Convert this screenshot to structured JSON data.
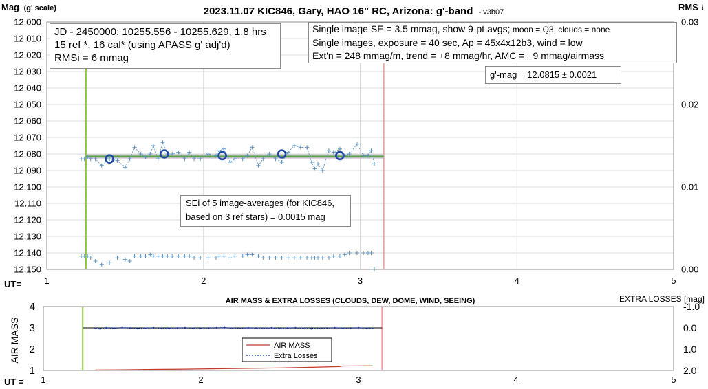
{
  "chart_data": [
    {
      "type": "scatter",
      "title": "2023.11.07 KIC846, Gary, HAO 16\" RC, Arizona: g'-band",
      "version_tag": "- v3b07",
      "ylabel_left": "Mag",
      "ylabel_left_sub": "(g' scale)",
      "ylabel_right": "RMS",
      "ylabel_right_sub": "i",
      "xlabel": "UT=",
      "xlim": [
        1,
        5
      ],
      "ylim": [
        12.0,
        12.15
      ],
      "y_inverted": true,
      "y2lim": [
        0.0,
        0.03
      ],
      "xticks": [
        "1",
        "2",
        "3",
        "4",
        "5"
      ],
      "yticks": [
        "12.000",
        "12.010",
        "12.020",
        "12.030",
        "12.040",
        "12.050",
        "12.060",
        "12.070",
        "12.080",
        "12.090",
        "12.100",
        "12.110",
        "12.120",
        "12.130",
        "12.140",
        "12.150"
      ],
      "y2ticks": [
        "0.00",
        "0.01",
        "0.02",
        "0.03"
      ],
      "grid": true,
      "colors": {
        "single": "#5b95c6",
        "avg": "#1f4aa6",
        "trend": "#5aa64a",
        "band": "#b0b0b0",
        "start": "#8cc63f",
        "end": "#f0a0a0"
      },
      "start_line_x": 1.25,
      "end_line_x": 3.15,
      "model_line": {
        "x": [
          1.25,
          3.15
        ],
        "y": [
          12.0815,
          12.0815
        ]
      },
      "single_images": {
        "x": [
          1.22,
          1.24,
          1.26,
          1.28,
          1.31,
          1.35,
          1.4,
          1.45,
          1.5,
          1.53,
          1.56,
          1.6,
          1.63,
          1.66,
          1.68,
          1.71,
          1.74,
          1.77,
          1.8,
          1.84,
          1.88,
          1.91,
          1.94,
          1.98,
          2.03,
          2.08,
          2.1,
          2.13,
          2.17,
          2.2,
          2.25,
          2.28,
          2.31,
          2.35,
          2.38,
          2.42,
          2.46,
          2.5,
          2.54,
          2.58,
          2.62,
          2.66,
          2.69,
          2.71,
          2.73,
          2.76,
          2.8,
          2.83,
          2.87,
          2.9,
          2.93,
          2.98,
          3.02,
          3.05,
          3.07,
          3.09
        ],
        "y": [
          12.083,
          12.083,
          12.082,
          12.083,
          12.083,
          12.087,
          12.083,
          12.084,
          12.088,
          12.083,
          12.076,
          12.08,
          12.082,
          12.08,
          12.075,
          12.083,
          12.073,
          12.08,
          12.08,
          12.079,
          12.083,
          12.079,
          12.083,
          12.083,
          12.08,
          12.081,
          12.078,
          12.077,
          12.085,
          12.083,
          12.083,
          12.081,
          12.076,
          12.087,
          12.083,
          12.08,
          12.083,
          12.085,
          12.079,
          12.075,
          12.076,
          12.076,
          12.085,
          12.089,
          12.086,
          12.09,
          12.078,
          12.079,
          12.077,
          12.081,
          12.08,
          12.074,
          12.081,
          12.081,
          12.078,
          12.086
        ],
        "rms_marks_y": [
          12.142,
          12.142,
          12.142,
          12.143,
          12.145,
          12.147,
          12.146,
          12.143,
          12.144,
          12.145,
          12.142,
          12.142,
          12.142,
          12.141,
          12.142,
          12.142,
          12.142,
          12.142,
          12.142,
          12.142,
          12.142,
          12.142,
          12.143,
          12.143,
          12.143,
          12.143,
          12.142,
          12.142,
          12.143,
          12.142,
          12.142,
          12.141,
          12.141,
          12.142,
          12.143,
          12.143,
          12.143,
          12.143,
          12.143,
          12.143,
          12.143,
          12.143,
          12.143,
          12.143,
          12.143,
          12.143,
          12.143,
          12.142,
          12.142,
          12.141,
          12.14,
          12.14,
          12.14,
          12.14,
          12.14,
          12.15
        ]
      },
      "averages": {
        "x": [
          1.4,
          1.75,
          2.12,
          2.5,
          2.87
        ],
        "y": [
          12.083,
          12.08,
          12.081,
          12.08,
          12.081
        ]
      },
      "info_box_left": [
        "JD - 2450000: 10255.556 - 10255.629, 1.8 hrs",
        "15 ref *, 16 cal* (using APASS g' adj'd)",
        "RMSi = 6 mmag"
      ],
      "info_box_right": [
        {
          "main": "Single image SE = 3.5 mmag, show  9-pt avgs;",
          "small": " moon = Q3, clouds = none"
        },
        {
          "main": "Single images, exposure = 40 sec, Ap = 45x4x12b3, wind = low",
          "small": ""
        },
        {
          "main": "Ext'n = 248 mmag/m, trend = +8 mmag/hr, AMC = +9 mmag/airmass",
          "small": ""
        }
      ],
      "result_box": "g'-mag = 12.0815 ± 0.0021",
      "sei_box": [
        "SEi of 5 image-averages (for KIC846,",
        "based on 3 ref stars) = 0.0015 mag"
      ]
    },
    {
      "type": "line",
      "title": "AIR MASS & EXTRA LOSSES (CLOUDS, DEW, DOME, WIND, SEEING)",
      "ylabel_left": "AIR MASS",
      "ylabel_right": "EXTRA LOSSES [mag]",
      "xlabel": "UT =",
      "xlim": [
        1,
        5
      ],
      "ylim": [
        1,
        4
      ],
      "y2lim": [
        2.0,
        -1.0
      ],
      "xticks": [
        "1",
        "2",
        "3",
        "4",
        "5"
      ],
      "yticks": [
        "1",
        "2",
        "3",
        "4"
      ],
      "y2ticks": [
        "-1.0",
        "0.0",
        "1.0",
        "2.0"
      ],
      "start_line_x": 1.25,
      "end_line_x": 3.15,
      "legend": {
        "air_mass": "AIR MASS",
        "extra_losses": "Extra Losses"
      },
      "colors": {
        "air_mass": "#c0392b",
        "extra_losses": "#1a3a9c",
        "zero": "#000000"
      },
      "air_mass_series": {
        "x": [
          1.33,
          1.5,
          1.7,
          1.9,
          2.1,
          2.3,
          2.5,
          2.7,
          2.88,
          2.9,
          3.09
        ],
        "y": [
          1.02,
          1.03,
          1.05,
          1.06,
          1.08,
          1.1,
          1.12,
          1.15,
          1.18,
          1.21,
          1.22
        ]
      },
      "extra_losses_series": {
        "x": [
          1.33,
          1.36,
          1.4,
          1.45,
          1.5,
          1.55,
          1.6,
          1.65,
          1.7,
          1.75,
          1.8,
          1.85,
          1.9,
          1.95,
          2.0,
          2.05,
          2.1,
          2.15,
          2.2,
          2.25,
          2.3,
          2.35,
          2.4,
          2.45,
          2.5,
          2.55,
          2.6,
          2.65,
          2.7,
          2.75,
          2.8,
          2.85,
          2.9,
          2.95,
          3.0,
          3.05,
          3.09
        ],
        "y": [
          0.03,
          0.05,
          0.0,
          0.02,
          -0.01,
          0.01,
          0.04,
          0.02,
          0.0,
          0.03,
          0.02,
          0.01,
          0.0,
          0.02,
          0.03,
          0.01,
          0.0,
          -0.01,
          0.02,
          0.03,
          0.0,
          0.01,
          0.02,
          0.0,
          0.03,
          0.01,
          0.0,
          0.02,
          0.04,
          0.03,
          0.01,
          0.0,
          0.02,
          0.01,
          0.0,
          0.02,
          0.03
        ]
      }
    }
  ]
}
